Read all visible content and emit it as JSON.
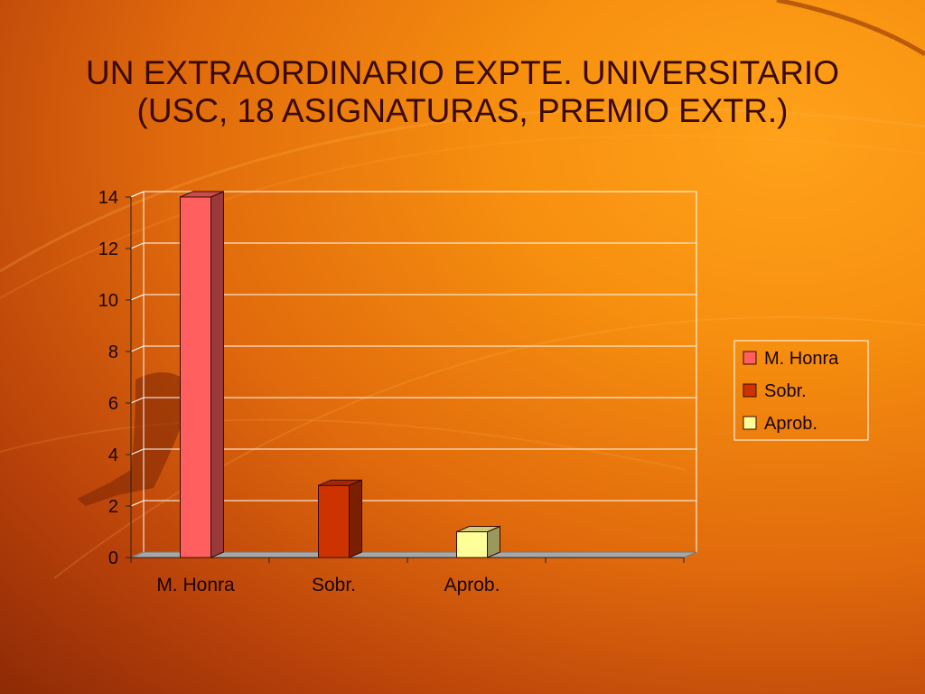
{
  "title": {
    "line1": "UN EXTRAORDINARIO EXPTE. UNIVERSITARIO",
    "line2": "(USC, 18 ASIGNATURAS, PREMIO EXTR.)"
  },
  "colors": {
    "title_text": "#3a0a02",
    "m_honra": "#ff5f5f",
    "sobr": "#cc3300",
    "aprob": "#ffff99",
    "gridline": "#ffffff",
    "floor": "#a8a8a8"
  },
  "chart_data": {
    "type": "bar",
    "style": "3d-clustered",
    "categories": [
      "M. Honra",
      "Sobr.",
      "Aprob.",
      ""
    ],
    "series": [
      {
        "name": "M. Honra",
        "values": [
          14,
          0,
          0,
          0
        ],
        "color": "#ff5f5f"
      },
      {
        "name": "Sobr.",
        "values": [
          0,
          2.8,
          0,
          0
        ],
        "color": "#cc3300"
      },
      {
        "name": "Aprob.",
        "values": [
          0,
          0,
          1,
          0
        ],
        "color": "#ffff99"
      }
    ],
    "yticks": [
      0,
      2,
      4,
      6,
      8,
      10,
      12,
      14
    ],
    "ylim": [
      0,
      14
    ],
    "xlabel": "",
    "ylabel": "",
    "grid": true,
    "legend": {
      "position": "right",
      "entries": [
        "M. Honra",
        "Sobr.",
        "Aprob."
      ]
    }
  }
}
